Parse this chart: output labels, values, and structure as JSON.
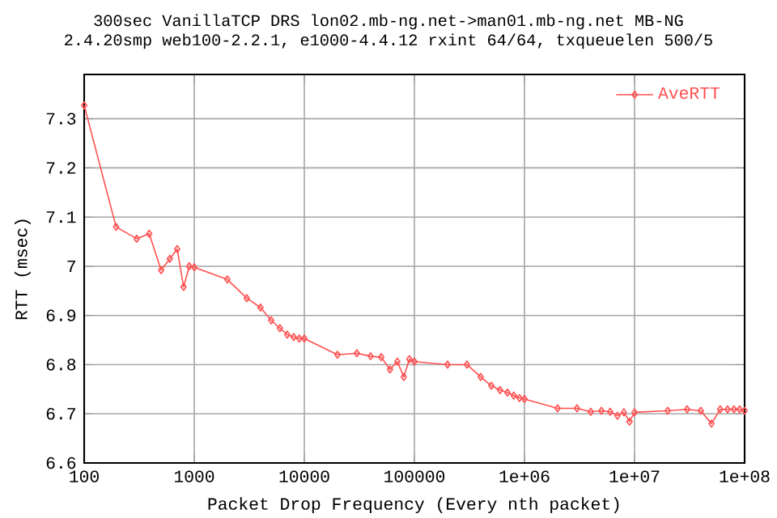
{
  "chart_data": {
    "type": "line",
    "title": "300sec VanillaTCP DRS lon02.mb-ng.net->man01.mb-ng.net MB-NG",
    "subtitle": "2.4.20smp web100-2.2.1, e1000-4.4.12 rxint 64/64, txqueuelen 500/5",
    "xlabel": "Packet Drop Frequency (Every nth packet)",
    "ylabel": "RTT (msec)",
    "x": [
      100,
      195,
      300,
      390,
      500,
      600,
      700,
      800,
      900,
      1000,
      2000,
      3000,
      4000,
      5000,
      6000,
      7000,
      8000,
      9000,
      10000,
      20000,
      30000,
      40000,
      50000,
      60000,
      70000,
      80000,
      90000,
      100000,
      200000,
      300000,
      400000,
      500000,
      600000,
      700000,
      800000,
      900000,
      1000000,
      2000000,
      3000000,
      4000000,
      5000000,
      6000000,
      7000000,
      8000000,
      9000000,
      10000000,
      20000000,
      30000000,
      40000000,
      50000000,
      60000000,
      70000000,
      80000000,
      90000000,
      100000000
    ],
    "series": [
      {
        "name": "AveRTT",
        "color": "#ff5050",
        "values": [
          7.327,
          7.08,
          7.056,
          7.066,
          6.992,
          7.015,
          7.035,
          6.958,
          7.0,
          6.998,
          6.973,
          6.935,
          6.916,
          6.89,
          6.874,
          6.861,
          6.856,
          6.853,
          6.853,
          6.82,
          6.823,
          6.817,
          6.815,
          6.79,
          6.806,
          6.775,
          6.811,
          6.806,
          6.8,
          6.8,
          6.775,
          6.757,
          6.748,
          6.743,
          6.737,
          6.732,
          6.73,
          6.711,
          6.711,
          6.704,
          6.706,
          6.704,
          6.696,
          6.703,
          6.684,
          6.703,
          6.706,
          6.709,
          6.706,
          6.68,
          6.709,
          6.709,
          6.709,
          6.709,
          6.706
        ]
      }
    ],
    "log": "x",
    "xlim": [
      100,
      100000000
    ],
    "xticks": [
      100,
      1000,
      10000,
      100000,
      {
        "value": 1000000,
        "label": "1e+06"
      },
      {
        "value": 10000000,
        "label": "1e+07"
      },
      {
        "value": 100000000,
        "label": "1e+08"
      }
    ],
    "ylim": [
      6.6,
      7.39
    ],
    "yticks": [
      6.6,
      6.7,
      6.8,
      6.9,
      7,
      7.1,
      7.2,
      7.3
    ],
    "grid": true,
    "legend": "top right",
    "marker": "diamond",
    "line_style": "solid"
  }
}
